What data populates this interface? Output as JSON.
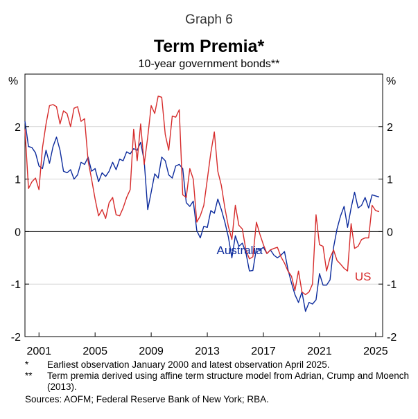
{
  "header": {
    "graph_number": "Graph 6",
    "title": "Term Premia*",
    "subtitle": "10-year government bonds**"
  },
  "footnotes": [
    {
      "marker": "*",
      "text": "Earliest observation January 2000 and latest observation April 2025."
    },
    {
      "marker": "**",
      "text": "Term premia derived using affine term structure model from Adrian, Crump and Moench (2013)."
    }
  ],
  "sources": "Sources:   AOFM; Federal Reserve Bank of New York; RBA.",
  "chart_data": {
    "type": "line",
    "title": "Term Premia*",
    "subtitle": "10-year government bonds**",
    "ylabel_left": "%",
    "ylabel_right": "%",
    "xlim": [
      2000,
      2025.5
    ],
    "ylim": [
      -2,
      3
    ],
    "x_tick_values": [
      2001,
      2005,
      2009,
      2013,
      2017,
      2021,
      2025
    ],
    "x_tick_labels": [
      "2001",
      "2005",
      "2009",
      "2013",
      "2017",
      "2021",
      "2025"
    ],
    "y_tick_values": [
      -2,
      -1,
      0,
      1,
      2
    ],
    "y_tick_labels": [
      "-2",
      "-1",
      "0",
      "1",
      "2"
    ],
    "grid": true,
    "series": [
      {
        "name": "Australia",
        "color": "#0b2a9c",
        "x": [
          2000.0,
          2000.25,
          2000.5,
          2000.75,
          2001.0,
          2001.25,
          2001.5,
          2001.75,
          2002.0,
          2002.25,
          2002.5,
          2002.75,
          2003.0,
          2003.25,
          2003.5,
          2003.75,
          2004.0,
          2004.25,
          2004.5,
          2004.75,
          2005.0,
          2005.25,
          2005.5,
          2005.75,
          2006.0,
          2006.25,
          2006.5,
          2006.75,
          2007.0,
          2007.25,
          2007.5,
          2007.75,
          2008.0,
          2008.25,
          2008.5,
          2008.75,
          2009.0,
          2009.25,
          2009.5,
          2009.75,
          2010.0,
          2010.25,
          2010.5,
          2010.75,
          2011.0,
          2011.25,
          2011.5,
          2011.75,
          2012.0,
          2012.25,
          2012.5,
          2012.75,
          2013.0,
          2013.25,
          2013.5,
          2013.75,
          2014.0,
          2014.25,
          2014.5,
          2014.75,
          2015.0,
          2015.25,
          2015.5,
          2015.75,
          2016.0,
          2016.25,
          2016.5,
          2016.75,
          2017.0,
          2017.25,
          2017.5,
          2017.75,
          2018.0,
          2018.25,
          2018.5,
          2018.75,
          2019.0,
          2019.25,
          2019.5,
          2019.75,
          2020.0,
          2020.25,
          2020.5,
          2020.75,
          2021.0,
          2021.25,
          2021.5,
          2021.75,
          2022.0,
          2022.25,
          2022.5,
          2022.75,
          2023.0,
          2023.25,
          2023.5,
          2023.75,
          2024.0,
          2024.25,
          2024.5,
          2024.75,
          2025.0,
          2025.25
        ],
        "y": [
          2.1,
          1.62,
          1.6,
          1.5,
          1.25,
          1.2,
          1.55,
          1.3,
          1.62,
          1.8,
          1.55,
          1.15,
          1.12,
          1.18,
          1.0,
          1.08,
          1.32,
          1.28,
          1.42,
          1.15,
          1.2,
          0.95,
          1.12,
          1.05,
          1.15,
          1.32,
          1.18,
          1.38,
          1.35,
          1.52,
          1.48,
          1.58,
          1.55,
          1.7,
          1.35,
          0.42,
          0.75,
          1.1,
          1.02,
          1.42,
          1.35,
          1.08,
          1.02,
          1.25,
          1.28,
          1.2,
          0.55,
          0.48,
          0.58,
          0.02,
          -0.12,
          0.1,
          0.08,
          0.4,
          0.35,
          0.62,
          0.42,
          0.18,
          -0.1,
          -0.5,
          -0.08,
          -0.28,
          -0.22,
          -0.4,
          -0.75,
          -0.74,
          -0.32,
          -0.35,
          -0.3,
          -0.42,
          -0.35,
          -0.45,
          -0.5,
          -0.45,
          -0.38,
          -0.72,
          -0.98,
          -1.2,
          -1.35,
          -1.15,
          -1.52,
          -1.35,
          -1.38,
          -1.3,
          -0.8,
          -1.02,
          -1.02,
          -0.92,
          -0.3,
          0.05,
          0.3,
          0.48,
          0.08,
          0.45,
          0.75,
          0.45,
          0.5,
          0.65,
          0.45,
          0.7,
          0.68,
          0.66
        ]
      },
      {
        "name": "US",
        "color": "#d62b2b",
        "x": [
          2000.0,
          2000.25,
          2000.5,
          2000.75,
          2001.0,
          2001.25,
          2001.5,
          2001.75,
          2002.0,
          2002.25,
          2002.5,
          2002.75,
          2003.0,
          2003.25,
          2003.5,
          2003.75,
          2004.0,
          2004.25,
          2004.5,
          2004.75,
          2005.0,
          2005.25,
          2005.5,
          2005.75,
          2006.0,
          2006.25,
          2006.5,
          2006.75,
          2007.0,
          2007.25,
          2007.5,
          2007.75,
          2008.0,
          2008.25,
          2008.5,
          2008.75,
          2009.0,
          2009.25,
          2009.5,
          2009.75,
          2010.0,
          2010.25,
          2010.5,
          2010.75,
          2011.0,
          2011.25,
          2011.5,
          2011.75,
          2012.0,
          2012.25,
          2012.5,
          2012.75,
          2013.0,
          2013.25,
          2013.5,
          2013.75,
          2014.0,
          2014.25,
          2014.5,
          2014.75,
          2015.0,
          2015.25,
          2015.5,
          2015.75,
          2016.0,
          2016.25,
          2016.5,
          2016.75,
          2017.0,
          2017.25,
          2017.5,
          2017.75,
          2018.0,
          2018.25,
          2018.5,
          2018.75,
          2019.0,
          2019.25,
          2019.5,
          2019.75,
          2020.0,
          2020.25,
          2020.5,
          2020.75,
          2021.0,
          2021.25,
          2021.5,
          2021.75,
          2022.0,
          2022.25,
          2022.5,
          2022.75,
          2023.0,
          2023.25,
          2023.5,
          2023.75,
          2024.0,
          2024.25,
          2024.5,
          2024.75,
          2025.0,
          2025.25
        ],
        "y": [
          1.95,
          0.82,
          0.95,
          1.02,
          0.8,
          1.6,
          2.05,
          2.4,
          2.42,
          2.38,
          2.05,
          2.3,
          2.25,
          2.0,
          2.35,
          2.38,
          2.1,
          2.15,
          1.35,
          1.0,
          0.62,
          0.3,
          0.42,
          0.25,
          0.55,
          0.65,
          0.32,
          0.3,
          0.45,
          0.65,
          0.8,
          1.95,
          1.35,
          2.05,
          1.28,
          1.8,
          2.4,
          2.25,
          2.58,
          2.56,
          1.85,
          1.55,
          2.2,
          2.18,
          2.32,
          0.7,
          0.65,
          1.2,
          1.0,
          0.18,
          0.3,
          0.5,
          1.0,
          1.5,
          1.9,
          1.15,
          0.88,
          0.45,
          0.1,
          -0.15,
          0.5,
          0.12,
          0.05,
          -0.35,
          -0.52,
          -0.48,
          0.18,
          -0.05,
          -0.25,
          -0.42,
          -0.35,
          -0.32,
          -0.3,
          -0.48,
          -0.6,
          -0.75,
          -0.85,
          -1.12,
          -0.75,
          -1.15,
          -1.2,
          -1.15,
          -1.0,
          0.32,
          -0.25,
          -0.28,
          -0.75,
          -0.5,
          -0.35,
          -0.55,
          -0.62,
          -0.7,
          -0.75,
          0.15,
          -0.32,
          -0.28,
          -0.15,
          -0.12,
          -0.12,
          0.5,
          0.4,
          0.38
        ]
      }
    ],
    "annotations": [
      {
        "text": "Australia",
        "series": "Australia",
        "x": 2015.3,
        "y": -0.43
      },
      {
        "text": "US",
        "series": "US",
        "x": 2024.1,
        "y": -0.93
      }
    ]
  }
}
